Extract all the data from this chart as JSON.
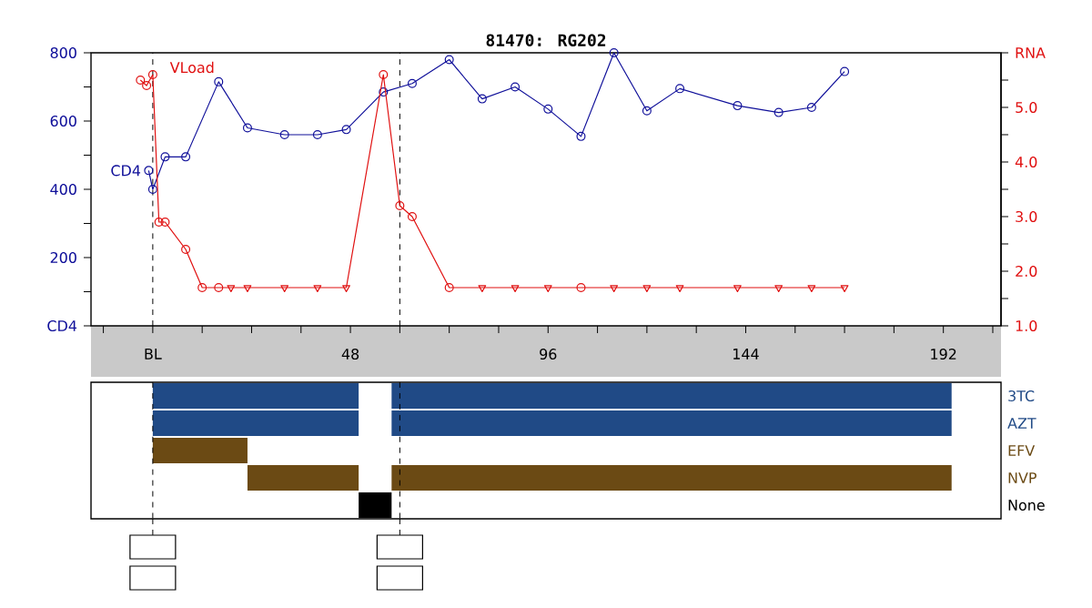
{
  "chart_data": [
    {
      "type": "line",
      "title": "81470: RG202",
      "xlim": [
        -15,
        206
      ],
      "xticks": [
        {
          "value": -12,
          "label": null
        },
        {
          "value": 0,
          "label": "BL"
        },
        {
          "value": 12,
          "label": null
        },
        {
          "value": 24,
          "label": null
        },
        {
          "value": 36,
          "label": null
        },
        48,
        {
          "value": 60,
          "label": null
        },
        {
          "value": 72,
          "label": null
        },
        {
          "value": 84,
          "label": null
        },
        96,
        {
          "value": 108,
          "label": null
        },
        {
          "value": 120,
          "label": null
        },
        {
          "value": 132,
          "label": null
        },
        144,
        {
          "value": 156,
          "label": null
        },
        {
          "value": 168,
          "label": null
        },
        {
          "value": 180,
          "label": null
        },
        192,
        {
          "value": 204,
          "label": null
        }
      ],
      "ylim": [
        0,
        800
      ],
      "yticks": [
        {
          "value": 0,
          "label": "CD4"
        },
        {
          "value": 100,
          "label": null
        },
        200,
        {
          "value": 300,
          "label": null
        },
        400,
        {
          "value": 500,
          "label": null
        },
        600,
        {
          "value": 700,
          "label": null
        },
        800
      ],
      "y2lim": [
        1.0,
        6.0
      ],
      "y2ticks": [
        {
          "value": 1,
          "label": "1.0"
        },
        {
          "value": 1.5,
          "label": null
        },
        {
          "value": 2,
          "label": "2.0"
        },
        {
          "value": 2.5,
          "label": null
        },
        {
          "value": 3,
          "label": "3.0"
        },
        {
          "value": 3.5,
          "label": null
        },
        {
          "value": 4,
          "label": "4.0"
        },
        {
          "value": 4.5,
          "label": null
        },
        {
          "value": 5,
          "label": "5.0"
        },
        {
          "value": 5.5,
          "label": null
        },
        {
          "value": 6,
          "label": "RNA"
        }
      ],
      "ref_lines": [
        {
          "axis": "x",
          "value": 0,
          "color": "#000000",
          "line_style": "dashed"
        },
        {
          "axis": "x",
          "value": 60,
          "color": "#000000",
          "line_style": "dashed"
        }
      ],
      "series": [
        {
          "name": "CD4",
          "type": "line",
          "marker": "circle",
          "color": "#10109a",
          "x": [
            -1,
            0,
            3,
            8,
            16,
            23,
            32,
            40,
            47,
            56,
            63,
            72,
            80,
            88,
            96,
            104,
            112,
            120,
            128,
            142,
            152,
            160,
            168
          ],
          "values": [
            455,
            400,
            495,
            495,
            715,
            580,
            560,
            560,
            575,
            685,
            710,
            780,
            665,
            700,
            635,
            555,
            800,
            630,
            695,
            645,
            625,
            640,
            745
          ]
        },
        {
          "name": "VLoad",
          "type": "line",
          "axis": "y2",
          "marker": "none",
          "color": "#e01010",
          "x": [
            -3,
            -1.5,
            0,
            1.5,
            3,
            8,
            12,
            16,
            19,
            23,
            32,
            40,
            47,
            56,
            60,
            63,
            72,
            80,
            88,
            96,
            104,
            112,
            120,
            128,
            142,
            152,
            160,
            168
          ],
          "values": [
            5.5,
            5.4,
            5.6,
            2.9,
            2.9,
            2.4,
            1.7,
            1.7,
            1.7,
            1.7,
            1.7,
            1.7,
            1.7,
            5.6,
            3.2,
            3.0,
            1.7,
            1.7,
            1.7,
            1.7,
            1.7,
            1.7,
            1.7,
            1.7,
            1.7,
            1.7,
            1.7,
            1.7
          ]
        },
        {
          "type": "scatter",
          "axis": "y2",
          "marker": "circle",
          "color": "#e01010",
          "x": [
            -3,
            -1.5,
            0,
            1.5,
            3,
            8,
            12,
            16,
            56,
            60,
            63,
            72,
            104
          ],
          "values": [
            5.5,
            5.4,
            5.6,
            2.9,
            2.9,
            2.4,
            1.7,
            1.7,
            5.6,
            3.2,
            3.0,
            1.7,
            1.7
          ]
        },
        {
          "type": "scatter",
          "axis": "y2",
          "marker": "triangle",
          "color": "#e01010",
          "x": [
            19,
            23,
            32,
            40,
            47,
            80,
            88,
            96,
            112,
            120,
            128,
            142,
            152,
            160,
            168
          ],
          "values": [
            1.7,
            1.7,
            1.7,
            1.7,
            1.7,
            1.7,
            1.7,
            1.7,
            1.7,
            1.7,
            1.7,
            1.7,
            1.7,
            1.7,
            1.7
          ]
        }
      ]
    },
    {
      "type": "bar",
      "orientation": "horizontal",
      "categories": [
        "3TC",
        "AZT",
        "EFV",
        "NVP",
        "None"
      ],
      "xlim": [
        -15,
        206
      ],
      "tick_labels": "y",
      "ref_lines": [
        {
          "axis": "x",
          "value": 0,
          "color": "#000000",
          "line_style": "dashed"
        },
        {
          "axis": "x",
          "value": 60,
          "color": "#000000",
          "line_style": "dashed"
        }
      ],
      "series": [
        {
          "colors": [
            "#204a86",
            "#204a86",
            "#6b4a14",
            "#6b4a14",
            "#000000"
          ],
          "base": [
            0,
            0,
            0,
            23,
            50
          ],
          "values": [
            50,
            50,
            23,
            27,
            8
          ]
        },
        {
          "colors": [
            "#204a86",
            "#204a86",
            null,
            "#6b4a14",
            null
          ],
          "base": [
            58,
            58,
            null,
            58,
            null
          ],
          "values": [
            136,
            136,
            null,
            136,
            null
          ]
        }
      ]
    }
  ]
}
